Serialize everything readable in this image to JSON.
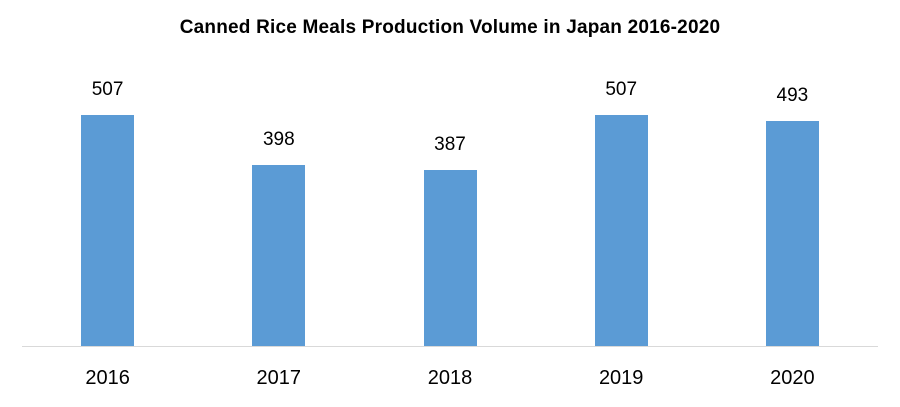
{
  "chart_data": {
    "type": "bar",
    "title": "Canned Rice Meals Production Volume in Japan 2016-2020",
    "categories": [
      "2016",
      "2017",
      "2018",
      "2019",
      "2020"
    ],
    "values": [
      507,
      398,
      387,
      507,
      493
    ],
    "xlabel": "",
    "ylabel": "",
    "ylim": [
      0,
      627
    ],
    "grid": false,
    "legend": null,
    "data_labels": true,
    "bar_color": "#5b9bd5"
  }
}
